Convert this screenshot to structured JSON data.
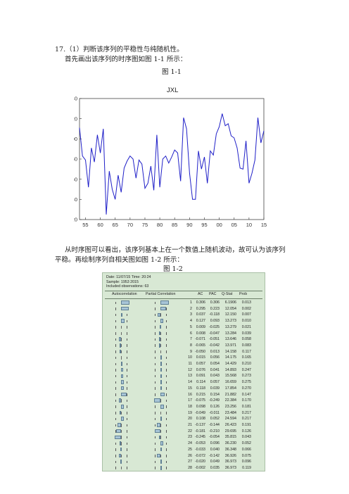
{
  "question": "17.（1）判断该序列的平稳性与纯随机性。",
  "intro": "首先画出该序列的时序图如图 1-1 所示：",
  "fig1_caption": "图 1-1",
  "conclusion_line1": "从时序图可以看出，该序列基本上在一个数值上随机波动，故可认为该序列",
  "conclusion_line2": "平稳。再绘制序列自相关图如图 1-2 所示：",
  "fig2_caption": "图 1-2",
  "chart_data": {
    "type": "line",
    "title": "JXL",
    "xlabel": "",
    "ylabel": "",
    "ylim": [
      20,
      140
    ],
    "yticks": [
      20,
      40,
      60,
      80,
      100,
      120,
      140
    ],
    "xlim": [
      1953,
      2015
    ],
    "xtick_labels": [
      "55",
      "60",
      "65",
      "70",
      "75",
      "80",
      "85",
      "90",
      "95",
      "00",
      "05",
      "10",
      "15"
    ],
    "xtick_years": [
      1955,
      1960,
      1965,
      1970,
      1975,
      1980,
      1985,
      1990,
      1995,
      2000,
      2005,
      2010,
      2015
    ],
    "series_color": "#1f1fc8",
    "x": [
      1953,
      1954,
      1955,
      1956,
      1957,
      1958,
      1959,
      1960,
      1961,
      1962,
      1963,
      1964,
      1965,
      1966,
      1967,
      1968,
      1969,
      1970,
      1971,
      1972,
      1973,
      1974,
      1975,
      1976,
      1977,
      1978,
      1979,
      1980,
      1981,
      1982,
      1983,
      1984,
      1985,
      1986,
      1987,
      1988,
      1989,
      1990,
      1991,
      1992,
      1993,
      1994,
      1995,
      1996,
      1997,
      1998,
      1999,
      2000,
      2001,
      2002,
      2003,
      2004,
      2005,
      2006,
      2007,
      2008,
      2009,
      2010,
      2011,
      2012,
      2013,
      2014,
      2015
    ],
    "values": [
      111,
      83,
      79,
      52,
      91,
      77,
      104,
      86,
      110,
      25,
      68,
      50,
      40,
      64,
      47,
      71,
      78,
      83,
      80,
      61,
      79,
      75,
      51,
      56,
      73,
      49,
      104,
      52,
      80,
      83,
      76,
      82,
      89,
      86,
      58,
      121,
      110,
      66,
      40,
      40,
      88,
      70,
      82,
      56,
      88,
      84,
      105,
      112,
      125,
      113,
      115,
      103,
      101,
      91,
      71,
      70,
      98,
      56,
      66,
      79,
      121,
      96,
      108
    ]
  },
  "correlogram": {
    "header_line1": "Date: 11/07/15   Time: 20:24",
    "header_line2": "Sample: 1953 2015",
    "header_line3": "Included observations: 63",
    "col_autocorrelation": "Autocorrelation",
    "col_partial": "Partial Correlation",
    "col_ac": "AC",
    "col_pac": "PAC",
    "col_qstat": "Q-Stat",
    "col_prob": "Prob",
    "rows": [
      {
        "lag": "1",
        "ac": "0.306",
        "pac": "0.306",
        "q": "6.1906",
        "prob": "0.013"
      },
      {
        "lag": "2",
        "ac": "0.295",
        "pac": "0.223",
        "q": "12.054",
        "prob": "0.002"
      },
      {
        "lag": "3",
        "ac": "0.037",
        "pac": "-0.118",
        "q": "12.150",
        "prob": "0.007"
      },
      {
        "lag": "4",
        "ac": "0.127",
        "pac": "0.093",
        "q": "13.273",
        "prob": "0.010"
      },
      {
        "lag": "5",
        "ac": "0.009",
        "pac": "-0.025",
        "q": "13.279",
        "prob": "0.021"
      },
      {
        "lag": "6",
        "ac": "0.008",
        "pac": "-0.047",
        "q": "13.284",
        "prob": "0.039"
      },
      {
        "lag": "7",
        "ac": "-0.071",
        "pac": "-0.051",
        "q": "13.646",
        "prob": "0.058"
      },
      {
        "lag": "8",
        "ac": "-0.065",
        "pac": "-0.042",
        "q": "13.971",
        "prob": "0.083"
      },
      {
        "lag": "9",
        "ac": "-0.050",
        "pac": "0.013",
        "q": "14.158",
        "prob": "0.117"
      },
      {
        "lag": "10",
        "ac": "0.015",
        "pac": "0.056",
        "q": "14.175",
        "prob": "0.165"
      },
      {
        "lag": "11",
        "ac": "0.057",
        "pac": "0.054",
        "q": "14.429",
        "prob": "0.210"
      },
      {
        "lag": "12",
        "ac": "0.076",
        "pac": "0.041",
        "q": "14.893",
        "prob": "0.247"
      },
      {
        "lag": "13",
        "ac": "0.091",
        "pac": "0.043",
        "q": "15.568",
        "prob": "0.273"
      },
      {
        "lag": "14",
        "ac": "0.114",
        "pac": "0.057",
        "q": "16.659",
        "prob": "0.275"
      },
      {
        "lag": "15",
        "ac": "0.118",
        "pac": "0.039",
        "q": "17.854",
        "prob": "0.270"
      },
      {
        "lag": "16",
        "ac": "0.215",
        "pac": "0.154",
        "q": "21.882",
        "prob": "0.147"
      },
      {
        "lag": "17",
        "ac": "-0.075",
        "pac": "-0.249",
        "q": "22.384",
        "prob": "0.170"
      },
      {
        "lag": "18",
        "ac": "0.098",
        "pac": "0.126",
        "q": "23.256",
        "prob": "0.181"
      },
      {
        "lag": "19",
        "ac": "-0.049",
        "pac": "-0.011",
        "q": "23.484",
        "prob": "0.217"
      },
      {
        "lag": "20",
        "ac": "0.108",
        "pac": "0.052",
        "q": "24.594",
        "prob": "0.217"
      },
      {
        "lag": "21",
        "ac": "-0.137",
        "pac": "-0.144",
        "q": "26.423",
        "prob": "0.191"
      },
      {
        "lag": "22",
        "ac": "-0.181",
        "pac": "-0.210",
        "q": "29.695",
        "prob": "0.126"
      },
      {
        "lag": "23",
        "ac": "-0.245",
        "pac": "-0.054",
        "q": "35.815",
        "prob": "0.043"
      },
      {
        "lag": "24",
        "ac": "-0.053",
        "pac": "0.096",
        "q": "36.230",
        "prob": "0.052"
      },
      {
        "lag": "25",
        "ac": "-0.033",
        "pac": "0.040",
        "q": "36.348",
        "prob": "0.066"
      },
      {
        "lag": "26",
        "ac": "-0.072",
        "pac": "-0.142",
        "q": "36.926",
        "prob": "0.075"
      },
      {
        "lag": "27",
        "ac": "-0.020",
        "pac": "0.049",
        "q": "36.973",
        "prob": "0.096"
      },
      {
        "lag": "28",
        "ac": "-0.002",
        "pac": "0.035",
        "q": "36.973",
        "prob": "0.119"
      }
    ]
  }
}
